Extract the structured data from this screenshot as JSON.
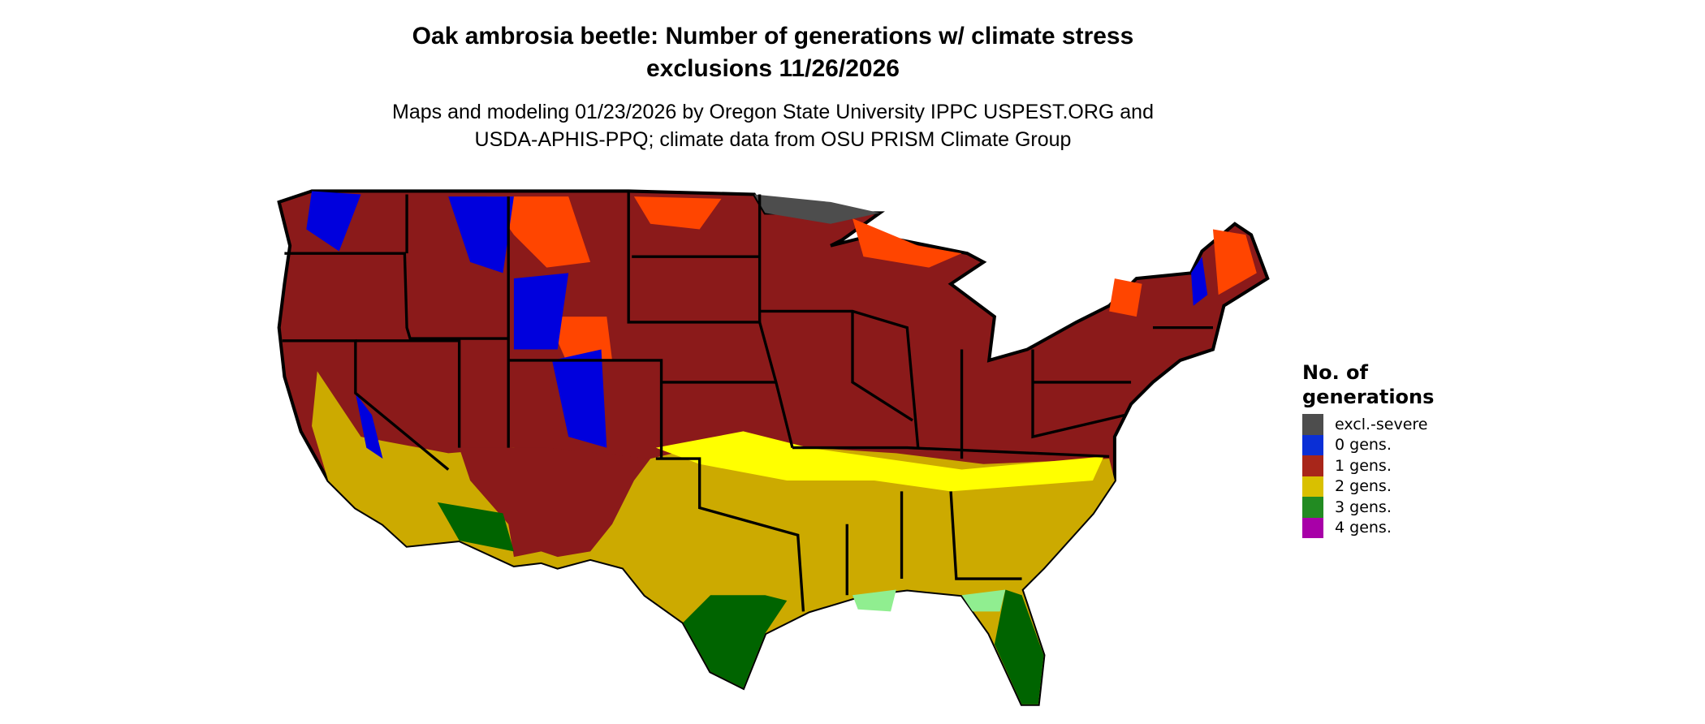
{
  "header": {
    "title_line1": "Oak ambrosia beetle: Number of generations w/ climate stress",
    "title_line2": "exclusions 11/26/2026",
    "subtitle_line1": "Maps and modeling 01/23/2026 by Oregon State University IPPC USPEST.ORG and",
    "subtitle_line2": "USDA-APHIS-PPQ; climate data from OSU PRISM Climate Group"
  },
  "legend": {
    "title_line1": "No. of",
    "title_line2": "generations",
    "items": [
      {
        "label": "excl.-severe",
        "color": "#4d4d4d"
      },
      {
        "label": "0 gens.",
        "color": "#0a2fd6"
      },
      {
        "label": "1 gens.",
        "color": "#a8261a"
      },
      {
        "label": "2 gens.",
        "color": "#d9c000"
      },
      {
        "label": "3 gens.",
        "color": "#228b22"
      },
      {
        "label": "4 gens.",
        "color": "#a800a8"
      }
    ]
  },
  "map_colors": {
    "one_gen_dark": "#8b1a1a",
    "one_gen_light": "#ff4500",
    "two_gen": "#ccaa00",
    "two_gen_light": "#ffff00",
    "three_gen": "#006400",
    "three_gen_light": "#90ee90",
    "zero_gen": "#0000dd",
    "excluded": "#4d4d4d"
  }
}
